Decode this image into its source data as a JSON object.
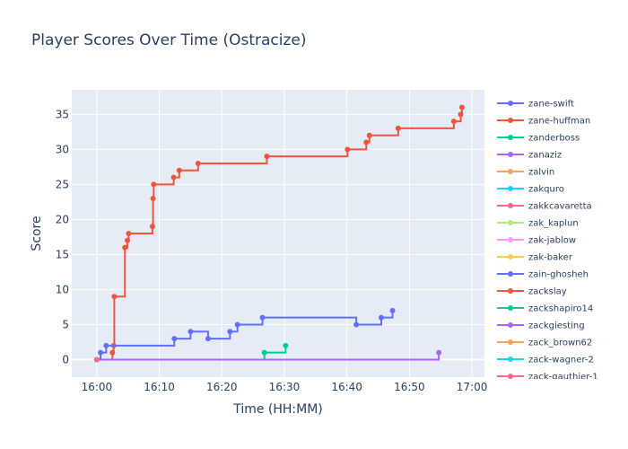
{
  "chart_data": {
    "type": "line",
    "line_shape": "step-after",
    "title": "Player Scores Over Time (Ostracize)",
    "xlabel": "Time (HH:MM)",
    "ylabel": "Score",
    "x_range": [
      "15:56",
      "17:02"
    ],
    "y_range": [
      -2.5,
      38.5
    ],
    "x_ticks": [
      "16:00",
      "16:10",
      "16:20",
      "16:30",
      "16:40",
      "16:50",
      "17:00"
    ],
    "y_ticks": [
      0,
      5,
      10,
      15,
      20,
      25,
      30,
      35
    ],
    "grid": true,
    "background": "#e5ecf6",
    "legend_position": "right",
    "series": [
      {
        "name": "zane-swift",
        "color": "#636efa",
        "points": [
          [
            "16:00",
            0
          ]
        ]
      },
      {
        "name": "zane-huffman",
        "color": "#ef553b",
        "points": [
          [
            "16:00",
            0
          ],
          [
            "16:02.5",
            1
          ],
          [
            "16:02.7",
            2
          ],
          [
            "16:02.8",
            9
          ],
          [
            "16:04.5",
            16
          ],
          [
            "16:04.9",
            17
          ],
          [
            "16:05.1",
            18
          ],
          [
            "16:08.9",
            19
          ],
          [
            "16:09",
            23
          ],
          [
            "16:09.1",
            25
          ],
          [
            "16:12.3",
            26
          ],
          [
            "16:13.2",
            27
          ],
          [
            "16:16.2",
            28
          ],
          [
            "16:27.2",
            29
          ],
          [
            "16:40.1",
            30
          ],
          [
            "16:43.1",
            31
          ],
          [
            "16:43.6",
            32
          ],
          [
            "16:48.2",
            33
          ],
          [
            "16:57.1",
            34
          ],
          [
            "16:58.2",
            35
          ],
          [
            "16:58.4",
            36
          ]
        ]
      },
      {
        "name": "zanderboss",
        "color": "#00cc96",
        "points": [
          [
            "16:00",
            0
          ],
          [
            "16:26.8",
            1
          ],
          [
            "16:30.2",
            2
          ]
        ]
      },
      {
        "name": "zanaziz",
        "color": "#ab63fa",
        "points": [
          [
            "16:00",
            0
          ],
          [
            "16:54.7",
            1
          ]
        ]
      },
      {
        "name": "zalvin",
        "color": "#ffa15a",
        "points": [
          [
            "16:00",
            0
          ]
        ]
      },
      {
        "name": "zakquro",
        "color": "#19d3f3",
        "points": [
          [
            "16:00",
            0
          ]
        ]
      },
      {
        "name": "zakkcavaretta",
        "color": "#ff6692",
        "points": [
          [
            "16:00",
            0
          ]
        ]
      },
      {
        "name": "zak_kaplun",
        "color": "#b6e880",
        "points": [
          [
            "16:00",
            0
          ]
        ]
      },
      {
        "name": "zak-jablow",
        "color": "#ff97ff",
        "points": [
          [
            "16:00",
            0
          ]
        ]
      },
      {
        "name": "zak-baker",
        "color": "#fecb52",
        "points": [
          [
            "16:00",
            0
          ]
        ]
      },
      {
        "name": "zain-ghosheh",
        "color": "#636efa",
        "points": [
          [
            "16:00",
            0
          ],
          [
            "16:00.6",
            1
          ],
          [
            "16:01.5",
            2
          ],
          [
            "16:12.4",
            3
          ],
          [
            "16:15",
            4
          ],
          [
            "16:17.8",
            3
          ],
          [
            "16:21.3",
            4
          ],
          [
            "16:22.5",
            5
          ],
          [
            "16:26.5",
            6
          ],
          [
            "16:41.5",
            5
          ],
          [
            "16:45.5",
            6
          ],
          [
            "16:47.3",
            7
          ]
        ]
      },
      {
        "name": "zackslay",
        "color": "#ef553b",
        "points": [
          [
            "16:00",
            0
          ]
        ]
      },
      {
        "name": "zackshapiro14",
        "color": "#00cc96",
        "points": [
          [
            "16:00",
            0
          ]
        ]
      },
      {
        "name": "zackgiesting",
        "color": "#ab63fa",
        "points": [
          [
            "16:00",
            0
          ]
        ]
      },
      {
        "name": "zack_brown62",
        "color": "#ffa15a",
        "points": [
          [
            "16:00",
            0
          ]
        ]
      },
      {
        "name": "zack-wagner-2",
        "color": "#19d3f3",
        "points": [
          [
            "16:00",
            0
          ]
        ]
      },
      {
        "name": "zack-gauthier-1",
        "color": "#ff6692",
        "points": [
          [
            "16:00",
            0
          ]
        ]
      }
    ]
  }
}
